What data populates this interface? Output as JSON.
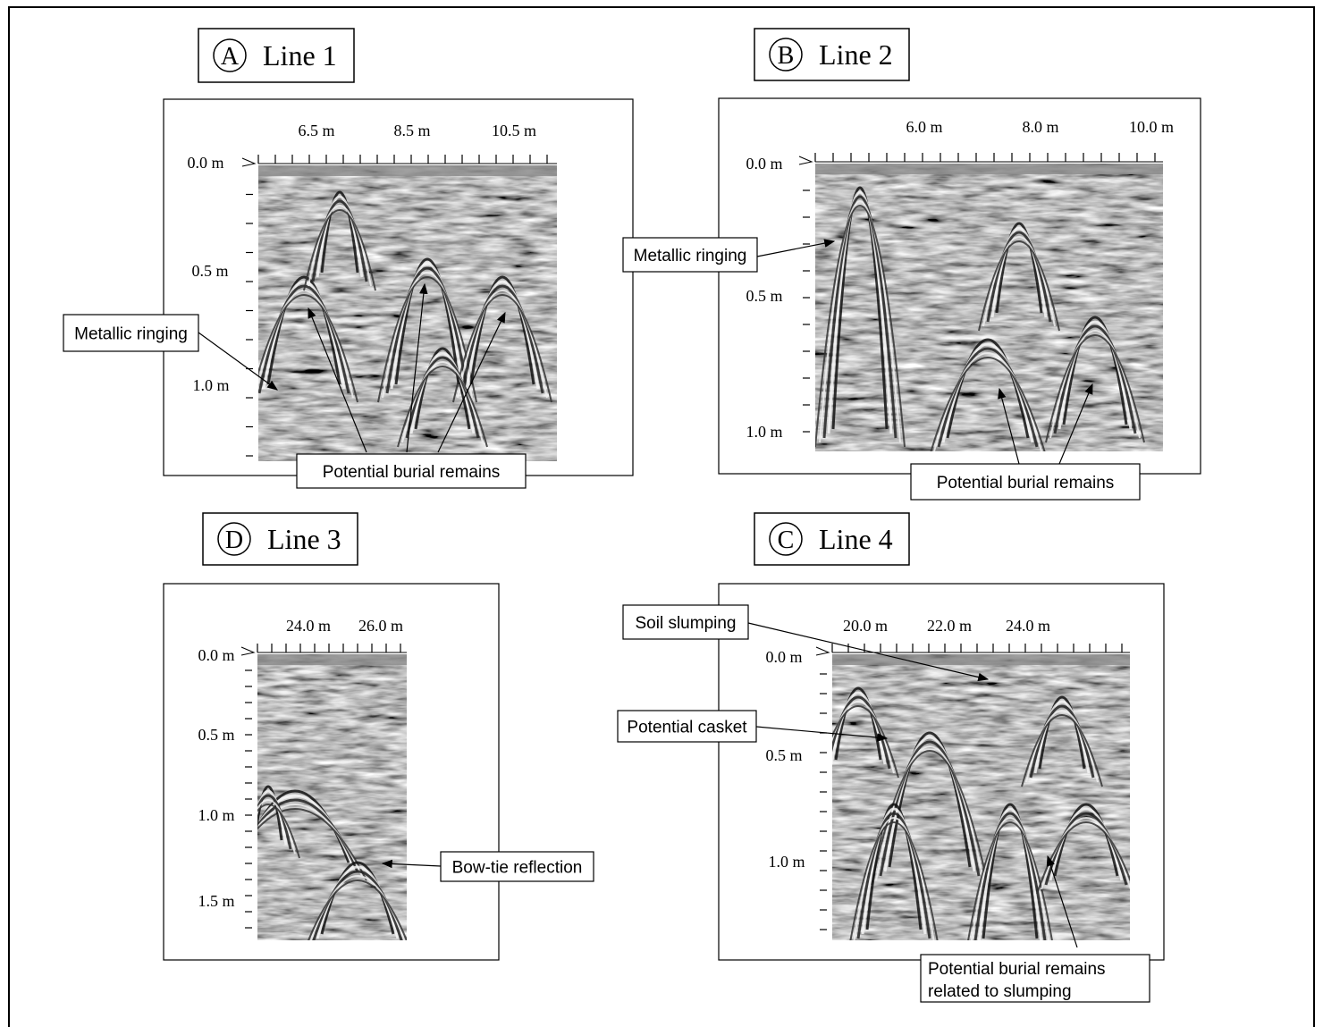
{
  "panels": [
    {
      "letter": "A",
      "title": "Line 1",
      "x_ticks": [
        "6.5 m",
        "8.5 m",
        "10.5 m"
      ],
      "y_ticks": [
        "0.0 m",
        "0.5 m",
        "1.0 m"
      ],
      "annotations": [
        [
          "Metallic ringing"
        ],
        [
          "Potential burial remains"
        ]
      ]
    },
    {
      "letter": "B",
      "title": "Line 2",
      "x_ticks": [
        "6.0 m",
        "8.0 m",
        "10.0 m"
      ],
      "y_ticks": [
        "0.0 m",
        "0.5 m",
        "1.0 m"
      ],
      "annotations": [
        [
          "Metallic ringing"
        ],
        [
          "Potential burial remains"
        ]
      ]
    },
    {
      "letter": "D",
      "title": "Line 3",
      "x_ticks": [
        "24.0  m",
        "26.0 m"
      ],
      "y_ticks": [
        "0.0 m",
        "0.5 m",
        "1.0 m",
        "1.5 m"
      ],
      "annotations": [
        [
          "Bow-tie reflection"
        ]
      ]
    },
    {
      "letter": "C",
      "title": "Line 4",
      "x_ticks": [
        "20.0 m",
        "22.0 m",
        "24.0 m"
      ],
      "y_ticks": [
        "0.0 m",
        "0.5 m",
        "1.0 m"
      ],
      "annotations": [
        [
          "Soil slumping"
        ],
        [
          "Potential casket"
        ],
        [
          "Potential burial remains",
          "related to slumping"
        ]
      ]
    }
  ]
}
